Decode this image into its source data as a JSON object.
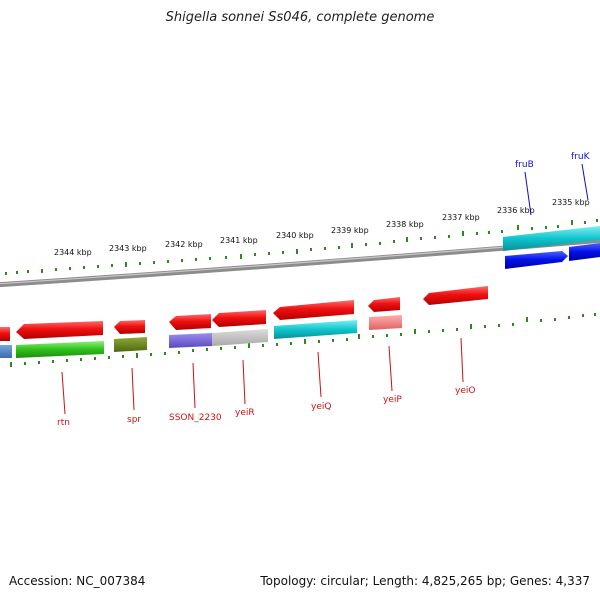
{
  "title": "Shigella sonnei Ss046, complete genome",
  "footer": {
    "accession": "Accession: NC_007384",
    "stats": "Topology: circular; Length: 4,825,265 bp; Genes: 4,337"
  },
  "colors": {
    "tick": "#2a8a1a",
    "backbone": "#8c8c8c",
    "upper_label": "#1010cc",
    "lower_label": "#cc1111"
  },
  "scale": {
    "labels": [
      "2335 kbp",
      "2336 kbp",
      "2337 kbp",
      "2338 kbp",
      "2339 kbp",
      "2340 kbp",
      "2341 kbp",
      "2342 kbp",
      "2343 kbp",
      "2344 kbp"
    ]
  },
  "genes_upper": [
    {
      "name": "fruB",
      "color": "#00c0cc"
    },
    {
      "name": "fruK",
      "color": "#0000e0"
    }
  ],
  "genes_lower": [
    {
      "name": "rtn",
      "color": "#ee1111"
    },
    {
      "name": "spr",
      "color": "#ee1111"
    },
    {
      "name": "SSON_2230",
      "color": "#ee1111"
    },
    {
      "name": "yeiR",
      "color": "#ee1111"
    },
    {
      "name": "yeiQ",
      "color": "#ee1111"
    },
    {
      "name": "yeiP",
      "color": "#ee1111"
    },
    {
      "name": "yeiO",
      "color": "#ee1111"
    }
  ]
}
